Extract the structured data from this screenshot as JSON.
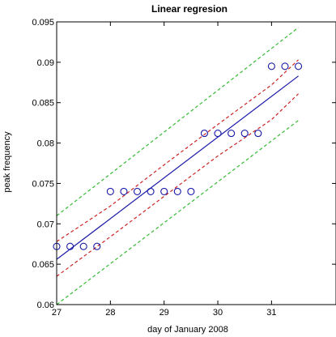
{
  "chart_data": {
    "type": "scatter",
    "title": "Linear regresion",
    "xlabel": "day of January 2008",
    "ylabel": "peak frequency",
    "xlim": [
      27,
      32.2
    ],
    "ylim": [
      0.06,
      0.095
    ],
    "xticks": [
      27,
      28,
      29,
      30,
      31
    ],
    "xtick_labels": [
      "27",
      "28",
      "29",
      "30",
      "31"
    ],
    "yticks": [
      0.06,
      0.065,
      0.07,
      0.075,
      0.08,
      0.085,
      0.09,
      0.095
    ],
    "ytick_labels": [
      "0.06",
      "0.065",
      "0.07",
      "0.075",
      "0.08",
      "0.085",
      "0.09",
      "0.095"
    ],
    "grid": false,
    "series": [
      {
        "marker": "circle",
        "color": "#1a1aa8",
        "x": [
          27.0,
          27.25,
          27.5,
          27.75,
          28.0,
          28.25,
          28.5,
          28.75,
          29.0,
          29.25,
          29.5,
          29.75,
          30.0,
          30.25,
          30.5,
          30.75,
          31.0,
          31.25,
          31.5
        ],
        "y": [
          0.0672,
          0.0672,
          0.0672,
          0.0672,
          0.074,
          0.074,
          0.074,
          0.074,
          0.074,
          0.074,
          0.074,
          0.0812,
          0.0812,
          0.0812,
          0.0812,
          0.0812,
          0.0895,
          0.0895,
          0.0895
        ]
      }
    ],
    "fit_line": {
      "color": "#1a1aa8",
      "style": "solid",
      "x": [
        27,
        31.5
      ],
      "y": [
        0.0656,
        0.0883
      ]
    },
    "confidence_band": {
      "color": "#cc2222",
      "style": "dashed",
      "upper": {
        "x": [
          27,
          28,
          29,
          30,
          31,
          31.5
        ],
        "y": [
          0.0678,
          0.0722,
          0.0773,
          0.0823,
          0.0872,
          0.0903
        ]
      },
      "lower": {
        "x": [
          27,
          28,
          29,
          30,
          31,
          31.5
        ],
        "y": [
          0.0635,
          0.0684,
          0.0734,
          0.0784,
          0.0829,
          0.0861
        ]
      }
    },
    "prediction_band": {
      "color": "#33bb33",
      "style": "dashed",
      "upper": {
        "x": [
          27,
          31.5
        ],
        "y": [
          0.071,
          0.0943
        ]
      },
      "lower": {
        "x": [
          27,
          31.5
        ],
        "y": [
          0.06,
          0.0828
        ]
      }
    }
  }
}
